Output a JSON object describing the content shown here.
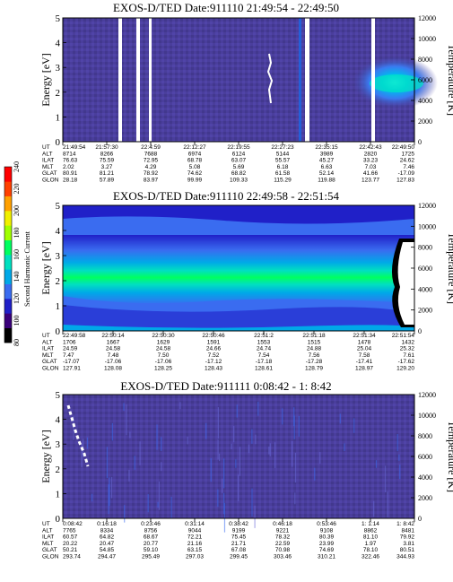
{
  "colors": {
    "panel_bg": "#4a3e9c",
    "colorbar": [
      "#000000",
      "#3a007a",
      "#2020c8",
      "#3a6cf0",
      "#00a8e8",
      "#00e0c0",
      "#00ff60",
      "#a0ff00",
      "#f0f000",
      "#ffa000",
      "#ff4000",
      "#ff0000"
    ]
  },
  "colorbar": {
    "label": "Second Harmonic Current",
    "ticks": [
      "80",
      "100",
      "120",
      "140",
      "160",
      "180",
      "200",
      "220",
      "240"
    ]
  },
  "chart_data": [
    {
      "type": "heatmap",
      "title": "EXOS-D/TED   Date:911110   21:49:54 - 22:49:50",
      "ylabel": "Energy [eV]",
      "y2label": "Temperature [K]",
      "ylim": [
        0,
        5
      ],
      "y_ticks": [
        "0",
        "1",
        "2",
        "3",
        "4",
        "5"
      ],
      "y2lim": [
        0,
        12000
      ],
      "y2_ticks": [
        "0",
        "2000",
        "4000",
        "6000",
        "8000",
        "10000",
        "12000"
      ],
      "row_labels": [
        "UT",
        "ALT",
        "ILAT",
        "MLT",
        "GLAT",
        "GLON"
      ],
      "columns": [
        [
          "21:49:54",
          "8714",
          "76.63",
          "2.02",
          "80.91",
          "28.18"
        ],
        [
          "21:57:30",
          "8266",
          "75.59",
          "3.27",
          "81.21",
          "57.89"
        ],
        [
          "22:4:59",
          "7688",
          "72.95",
          "4.29",
          "78.92",
          "83.97"
        ],
        [
          "22:12:27",
          "6974",
          "68.78",
          "5.08",
          "74.62",
          "99.99"
        ],
        [
          "22:19:55",
          "6124",
          "63.07",
          "5.69",
          "68.82",
          "109.33"
        ],
        [
          "22:27:23",
          "5144",
          "55.57",
          "6.18",
          "61.58",
          "115.29"
        ],
        [
          "22:35:15",
          "3989",
          "45.27",
          "6.63",
          "52.14",
          "119.88"
        ],
        [
          "22:42:43",
          "2820",
          "33.23",
          "7.03",
          "41.66",
          "123.77"
        ],
        [
          "22:49:50",
          "1725",
          "24.62",
          "7.46",
          "-17.09",
          "127.83"
        ]
      ]
    },
    {
      "type": "heatmap",
      "title": "EXOS-D/TED   Date:911110   22:49:58 - 22:51:54",
      "ylabel": "Energy [eV]",
      "y2label": "Temperature [K]",
      "ylim": [
        0,
        5
      ],
      "y_ticks": [
        "0",
        "1",
        "2",
        "3",
        "4",
        "5"
      ],
      "y2lim": [
        0,
        12000
      ],
      "y2_ticks": [
        "0",
        "2000",
        "4000",
        "6000",
        "8000",
        "10000",
        "12000"
      ],
      "row_labels": [
        "UT",
        "ALT",
        "ILAT",
        "MLT",
        "GLAT",
        "GLON"
      ],
      "columns": [
        [
          "22:49:58",
          "1706",
          "24.59",
          "7.47",
          "-17.07",
          "127.91"
        ],
        [
          "22:50:14",
          "1667",
          "24.58",
          "7.48",
          "-17.06",
          "128.08"
        ],
        [
          "22:50:30",
          "1629",
          "24.58",
          "7.50",
          "-17.06",
          "128.25"
        ],
        [
          "22:50:46",
          "1591",
          "24.66",
          "7.52",
          "-17.12",
          "128.43"
        ],
        [
          "22:51:2",
          "1553",
          "24.74",
          "7.54",
          "-17.18",
          "128.61"
        ],
        [
          "22:51:18",
          "1515",
          "24.88",
          "7.56",
          "-17.28",
          "128.79"
        ],
        [
          "22:51:34",
          "1478",
          "25.04",
          "7.58",
          "-17.41",
          "128.97"
        ],
        [
          "22:51:54",
          "1432",
          "25.32",
          "7.61",
          "-17.62",
          "129.20"
        ]
      ]
    },
    {
      "type": "heatmap",
      "title": "EXOS-D/TED   Date:911111   0:08:42 - 1: 8:42",
      "ylabel": "Energy [eV]",
      "y2label": "Temperature [K]",
      "ylim": [
        0,
        5
      ],
      "y_ticks": [
        "0",
        "1",
        "2",
        "3",
        "4",
        "5"
      ],
      "y2lim": [
        0,
        12000
      ],
      "y2_ticks": [
        "0",
        "2000",
        "4000",
        "6000",
        "8000",
        "10000",
        "12000"
      ],
      "row_labels": [
        "UT",
        "ALT",
        "ILAT",
        "MLT",
        "GLAT",
        "GLON"
      ],
      "columns": [
        [
          "0:08:42",
          "7765",
          "60.57",
          "20.22",
          "50.21",
          "293.74"
        ],
        [
          "0:16:18",
          "8334",
          "64.82",
          "20.47",
          "54.85",
          "294.47"
        ],
        [
          "0:23:46",
          "8756",
          "68.67",
          "20.77",
          "59.10",
          "295.49"
        ],
        [
          "0:31:14",
          "9044",
          "72.21",
          "21.16",
          "63.15",
          "297.03"
        ],
        [
          "0:38:42",
          "9199",
          "75.45",
          "21.71",
          "67.08",
          "299.45"
        ],
        [
          "0:46:18",
          "9221",
          "78.32",
          "22.59",
          "70.98",
          "303.46"
        ],
        [
          "0:53:46",
          "9108",
          "80.39",
          "23.99",
          "74.69",
          "310.21"
        ],
        [
          "1: 1:14",
          "8862",
          "81.10",
          "1.97",
          "78.10",
          "322.46"
        ],
        [
          "1: 8:42",
          "8481",
          "79.92",
          "3.81",
          "80.51",
          "344.93"
        ]
      ]
    }
  ]
}
